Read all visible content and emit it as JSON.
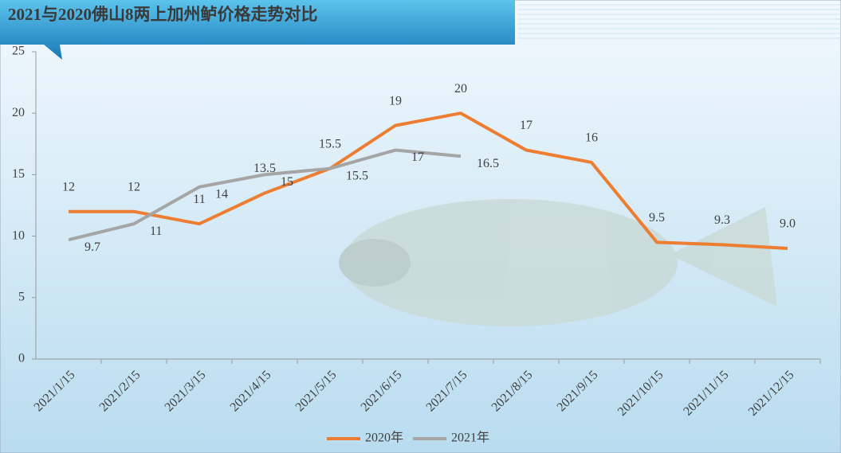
{
  "chart_data": {
    "type": "line",
    "title": "2021与2020佛山8两上加州鲈价格走势对比",
    "categories": [
      "2021/1/15",
      "2021/2/15",
      "2021/3/15",
      "2021/4/15",
      "2021/5/15",
      "2021/6/15",
      "2021/7/15",
      "2021/8/15",
      "2021/9/15",
      "2021/10/15",
      "2021/11/15",
      "2021/12/15"
    ],
    "series": [
      {
        "name": "2020年",
        "color": "#ed7d31",
        "values": [
          12,
          12,
          11,
          13.5,
          15.5,
          19,
          20,
          17,
          16,
          9.5,
          9.3,
          9.0
        ],
        "value_labels": [
          "12",
          "12",
          "11",
          "13.5",
          "15.5",
          "19",
          "20",
          "17",
          "16",
          "9.5",
          "9.3",
          "9.0"
        ]
      },
      {
        "name": "2021年",
        "color": "#a5a5a5",
        "values": [
          9.7,
          11,
          14,
          15,
          15.5,
          17,
          16.5,
          null,
          null,
          null,
          null,
          null
        ]
      }
    ],
    "ylim": [
      0,
      25
    ],
    "yticks": [
      0,
      5,
      10,
      15,
      20,
      25
    ],
    "legend": "bottom"
  }
}
